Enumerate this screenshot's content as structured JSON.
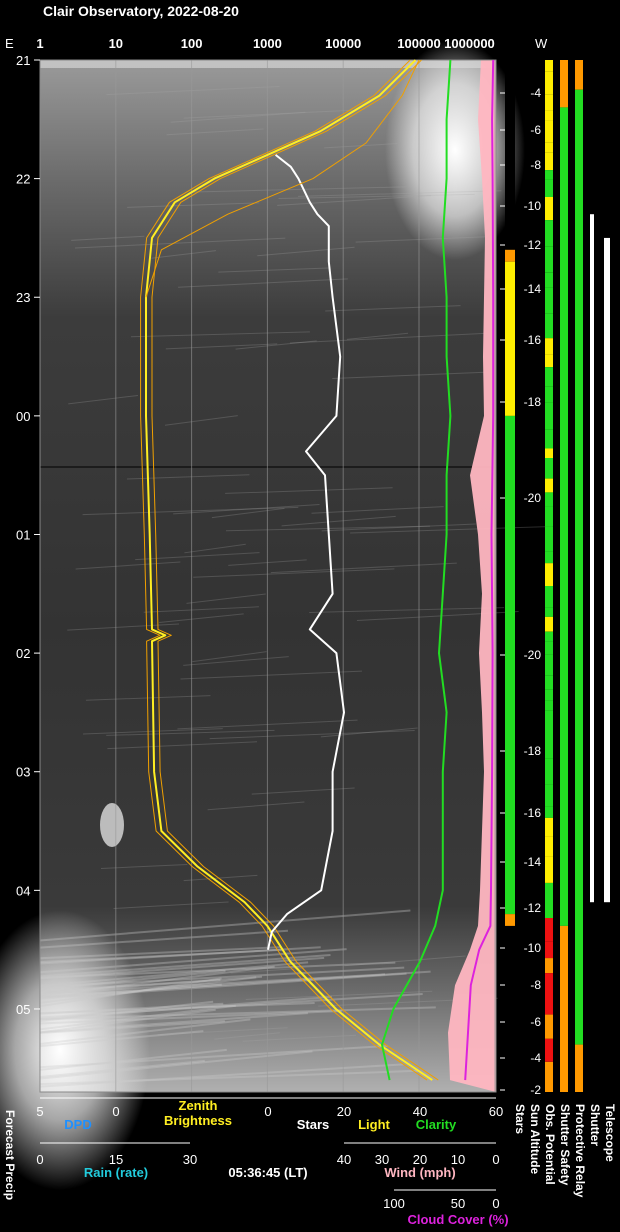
{
  "title": "Clair Observatory, 2022-08-20",
  "colors": {
    "zenith": "#ffee22",
    "zenith_model": "#f0a000",
    "stars": "#ffffff",
    "clarity": "#22dd22",
    "cloud": "#dd22dd",
    "pink": "#ffb6c1",
    "dpd": "#1e90ff",
    "rain": "#22ccdd",
    "green": "#22dd22",
    "yellow": "#ffee00",
    "orange": "#ff9900",
    "red": "#ee1111"
  },
  "top_axis": {
    "left": "E",
    "right": "W",
    "ticks": [
      "1",
      "10",
      "100",
      "1000",
      "10000",
      "100000",
      "1000000"
    ]
  },
  "time_ticks": [
    "21",
    "22",
    "23",
    "00",
    "01",
    "02",
    "03",
    "04",
    "05"
  ],
  "sun_altitude_ticks": [
    "-4",
    "-6",
    "-8",
    "-10",
    "-12",
    "-14",
    "-16",
    "-18",
    "-20",
    "-20",
    "-18",
    "-16",
    "-14",
    "-12",
    "-10",
    "-8",
    "-6",
    "-4",
    "-2"
  ],
  "bar_labels": {
    "stars": "Stars",
    "sun_altitude": "Sun Altitude",
    "obs_potential": "Obs. Potential",
    "shutter_safety": "Shutter Safety",
    "protective_relay": "Protective Relay",
    "shutter": "Shutter",
    "telescope": "Telescope"
  },
  "bottom": {
    "forecast_precip": "Forecast Precip",
    "dpd_label": "DPD",
    "dpd_ticks": [
      "5",
      "0"
    ],
    "zenith_label_1": "Zenith",
    "zenith_label_2": "Brightness",
    "stars_ticks": [
      "0",
      "20",
      "40",
      "60"
    ],
    "stars_label": "Stars",
    "light_label": "Light",
    "clarity_label": "Clarity",
    "rain_ticks": [
      "0",
      "15",
      "30"
    ],
    "rain_label": "Rain (rate)",
    "time_now": "05:36:45 (LT)",
    "wind_ticks": [
      "40",
      "30",
      "20",
      "10",
      "0"
    ],
    "wind_label": "Wind (mph)",
    "cloud_ticks": [
      "100",
      "50",
      "0"
    ],
    "cloud_label": "Cloud Cover (%)"
  },
  "chart_data": {
    "type": "line",
    "title": "Clair Observatory, 2022-08-20",
    "y_axis": "local time (hours, 21 at top to 05 at bottom)",
    "x_axis_brightness_log_range": [
      1,
      1000000
    ],
    "series": [
      {
        "name": "Zenith Brightness",
        "points": [
          [
            21.0,
            90000
          ],
          [
            21.3,
            30000
          ],
          [
            21.6,
            5000
          ],
          [
            21.8,
            1000
          ],
          [
            22.0,
            200
          ],
          [
            22.2,
            60
          ],
          [
            22.5,
            30
          ],
          [
            23.0,
            25
          ],
          [
            0.0,
            25
          ],
          [
            1.0,
            28
          ],
          [
            1.8,
            30
          ],
          [
            1.85,
            45
          ],
          [
            1.9,
            30
          ],
          [
            3.0,
            32
          ],
          [
            3.5,
            40
          ],
          [
            3.8,
            120
          ],
          [
            4.1,
            500
          ],
          [
            4.3,
            1000
          ],
          [
            4.6,
            2000
          ],
          [
            5.0,
            8000
          ],
          [
            5.3,
            30000
          ],
          [
            5.6,
            150000
          ]
        ]
      },
      {
        "name": "Stars",
        "points": [
          [
            21.8,
            2
          ],
          [
            21.9,
            6
          ],
          [
            22.0,
            8
          ],
          [
            22.2,
            11
          ],
          [
            22.3,
            13
          ],
          [
            22.4,
            16
          ],
          [
            22.7,
            16
          ],
          [
            23.0,
            17
          ],
          [
            23.5,
            19
          ],
          [
            0.0,
            18
          ],
          [
            0.3,
            10
          ],
          [
            0.5,
            15
          ],
          [
            1.0,
            16
          ],
          [
            1.5,
            17
          ],
          [
            1.8,
            11
          ],
          [
            2.0,
            18
          ],
          [
            2.5,
            20
          ],
          [
            3.0,
            17
          ],
          [
            3.5,
            17
          ],
          [
            4.0,
            14
          ],
          [
            4.2,
            5
          ],
          [
            4.35,
            1
          ],
          [
            4.5,
            0
          ]
        ]
      },
      {
        "name": "Clarity",
        "points": [
          [
            21.0,
            48
          ],
          [
            21.5,
            47
          ],
          [
            22.0,
            47
          ],
          [
            22.5,
            46
          ],
          [
            23.0,
            47
          ],
          [
            23.5,
            47
          ],
          [
            0.0,
            48
          ],
          [
            0.5,
            47
          ],
          [
            1.0,
            47
          ],
          [
            1.5,
            46
          ],
          [
            2.0,
            45
          ],
          [
            2.5,
            47
          ],
          [
            3.0,
            46
          ],
          [
            3.5,
            46
          ],
          [
            4.0,
            46
          ],
          [
            4.3,
            44
          ],
          [
            4.6,
            40
          ],
          [
            5.0,
            33
          ],
          [
            5.3,
            30
          ],
          [
            5.6,
            32
          ]
        ]
      },
      {
        "name": "Cloud Cover (%)",
        "points": [
          [
            21.0,
            5
          ],
          [
            21.5,
            7
          ],
          [
            22.0,
            6
          ],
          [
            23.0,
            5
          ],
          [
            0.0,
            5
          ],
          [
            1.0,
            8
          ],
          [
            2.0,
            6
          ],
          [
            3.0,
            7
          ],
          [
            4.0,
            9
          ],
          [
            4.3,
            10
          ],
          [
            4.5,
            30
          ],
          [
            4.8,
            45
          ],
          [
            5.2,
            50
          ],
          [
            5.6,
            55
          ]
        ]
      }
    ],
    "status_bars": [
      "Obs. Potential",
      "Shutter Safety",
      "Protective Relay",
      "Shutter",
      "Telescope"
    ]
  }
}
